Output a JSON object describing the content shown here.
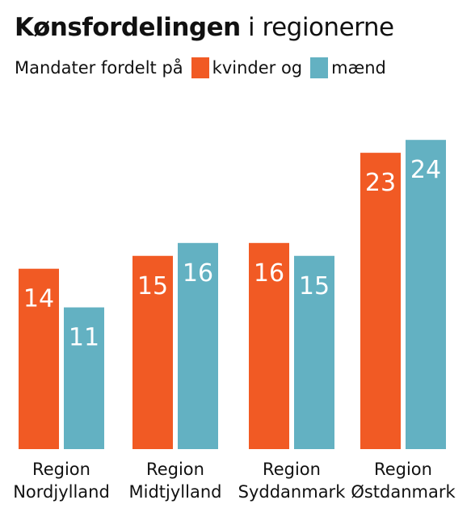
{
  "header": {
    "title_bold": "Kønsfordelingen",
    "title_rest": " i regionerne",
    "subtitle_lead": "Mandater fordelt på",
    "legend_women": "kvinder og",
    "legend_men": "mænd"
  },
  "colors": {
    "women": "#f15a24",
    "men": "#63b1c2",
    "text": "#111111",
    "bar_label": "#ffffff"
  },
  "chart_data": {
    "type": "bar",
    "title": "Kønsfordelingen i regionerne",
    "subtitle": "Mandater fordelt på kvinder og mænd",
    "categories": [
      [
        "Region",
        "Nordjylland"
      ],
      [
        "Region",
        "Midtjylland"
      ],
      [
        "Region",
        "Syddanmark"
      ],
      [
        "Region",
        "Østdanmark"
      ]
    ],
    "series": [
      {
        "name": "kvinder",
        "values": [
          14,
          15,
          16,
          23
        ]
      },
      {
        "name": "mænd",
        "values": [
          11,
          16,
          15,
          24
        ]
      }
    ],
    "ylim": [
      0,
      24
    ],
    "grid": false,
    "data_labels": true,
    "legend": "top-left, inline in subtitle"
  }
}
